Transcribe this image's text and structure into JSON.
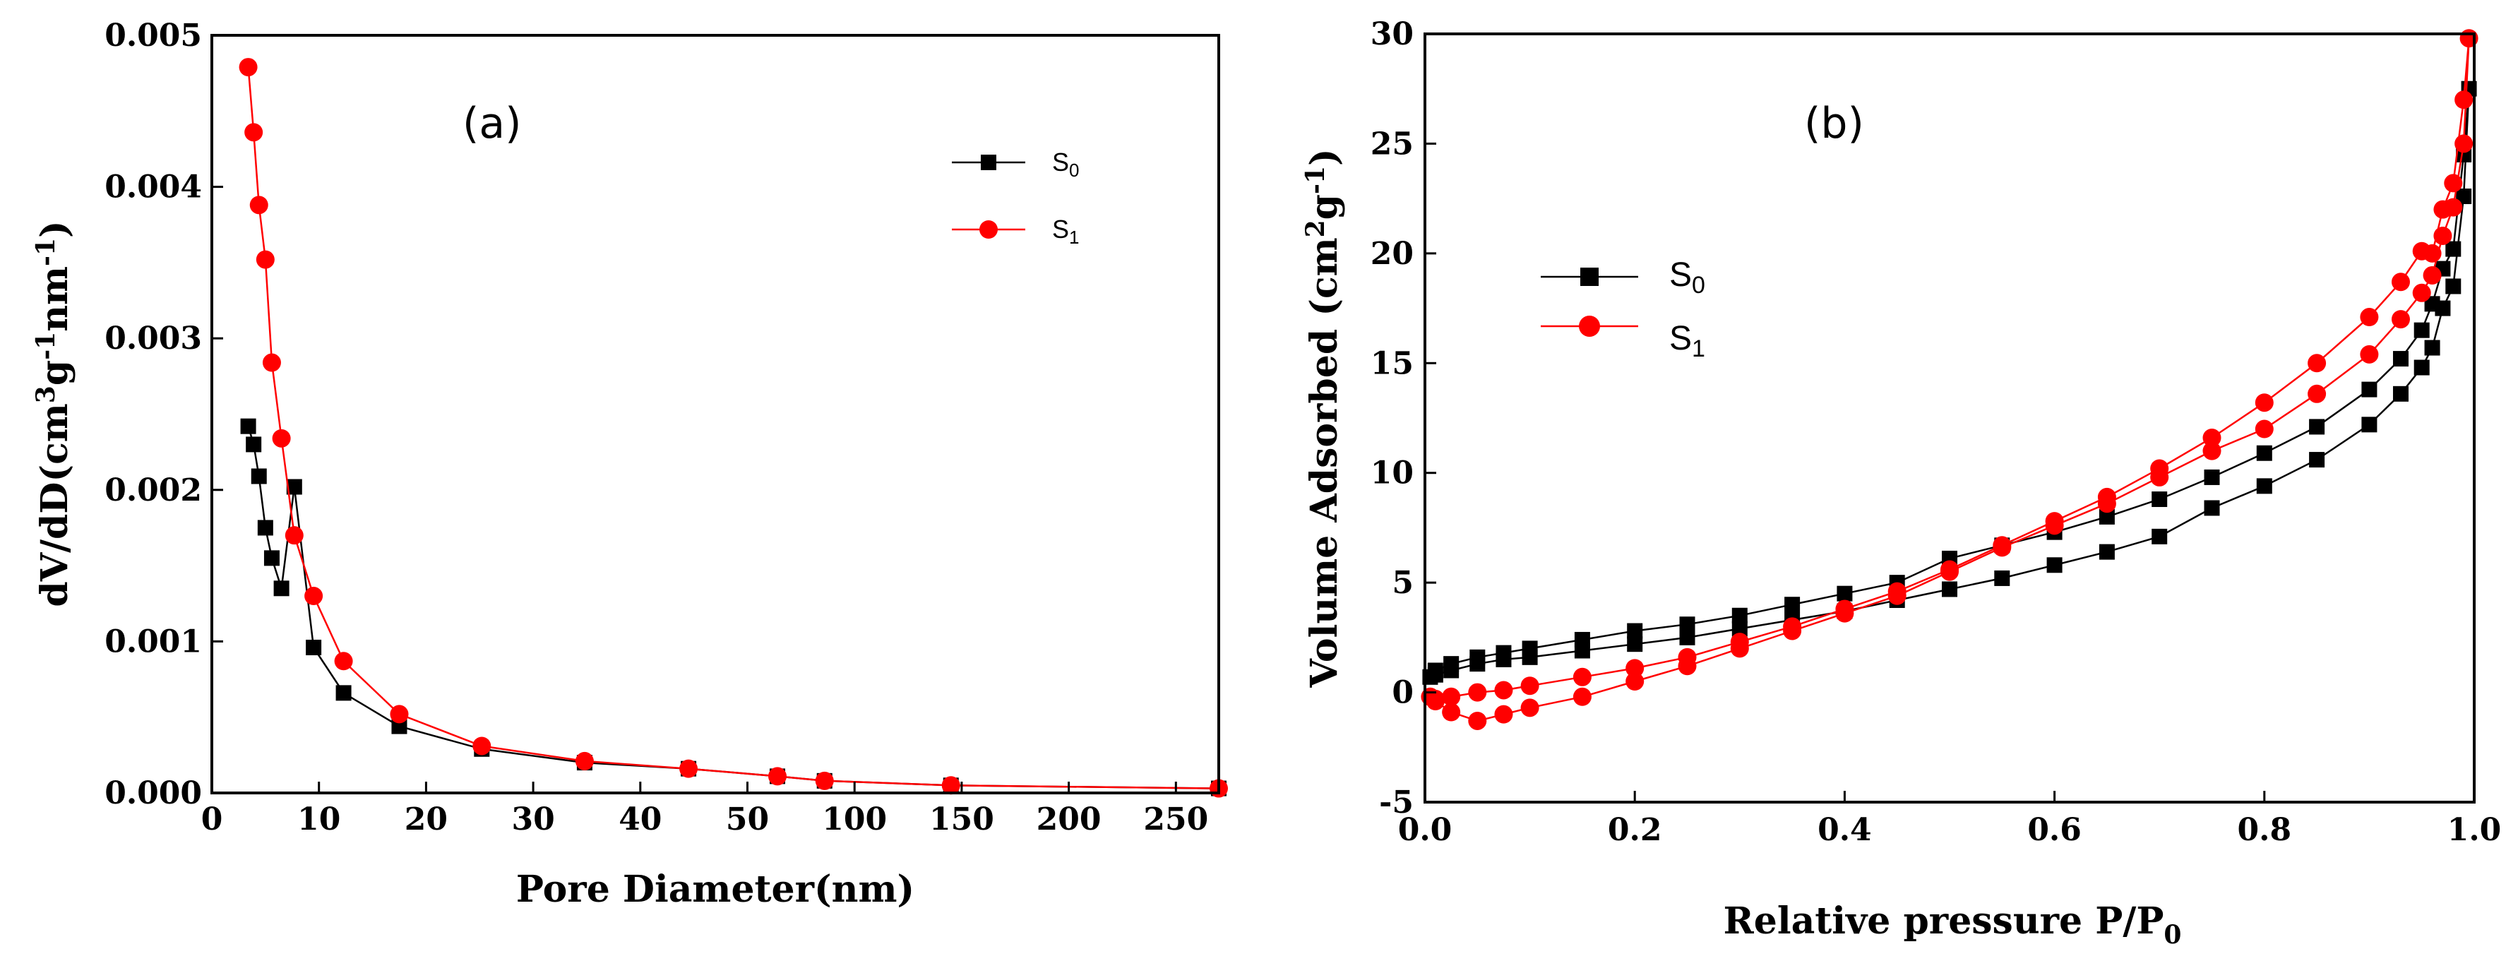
{
  "colors": {
    "s0": "#000000",
    "s1": "#ff0000",
    "frame": "#000000"
  },
  "chart_data": [
    {
      "type": "line",
      "panel_label": "(a)",
      "title": "",
      "xlabel": "Pore Diameter(nm)",
      "ylabel": "dV/dD(cm3g-1nm-1)",
      "ylabel_parts": {
        "base": "dV/dD(cm",
        "sup1": "3",
        "mid1": "g",
        "sup2": "-1",
        "mid2": "nm",
        "sup3": "-1",
        "end": ")"
      },
      "x_scale": "piecewise-categorical",
      "xticks": [
        0,
        10,
        20,
        30,
        40,
        50,
        100,
        150,
        200,
        250
      ],
      "xtick_labels": [
        "0",
        "10",
        "20",
        "30",
        "40",
        "50",
        "100",
        "150",
        "200",
        "250"
      ],
      "xlim": [
        0,
        270
      ],
      "ylim": [
        0,
        0.005
      ],
      "yticks": [
        0,
        0.001,
        0.002,
        0.003,
        0.004,
        0.005
      ],
      "ytick_labels": [
        "0.000",
        "0.001",
        "0.002",
        "0.003",
        "0.004",
        "0.005"
      ],
      "grid": false,
      "legend_position": "top-right",
      "series": [
        {
          "name": "S0",
          "label_base": "S",
          "label_sub": "0",
          "marker": "square",
          "color": "#000000",
          "x": [
            3.4,
            3.9,
            4.4,
            5.0,
            5.6,
            6.5,
            7.7,
            9.5,
            12.3,
            17.5,
            25.2,
            34.8,
            44.5,
            64.0,
            86.0,
            145.0,
            270.0
          ],
          "y": [
            0.00242,
            0.0023,
            0.00209,
            0.00175,
            0.00155,
            0.00135,
            0.00202,
            0.00096,
            0.00066,
            0.00044,
            0.00029,
            0.0002,
            0.00016,
            0.00011,
            8e-05,
            5e-05,
            3e-05
          ]
        },
        {
          "name": "S1",
          "label_base": "S",
          "label_sub": "1",
          "marker": "circle",
          "color": "#ff0000",
          "x": [
            3.4,
            3.9,
            4.4,
            5.0,
            5.6,
            6.5,
            7.7,
            9.5,
            12.3,
            17.5,
            25.2,
            34.8,
            44.5,
            64.0,
            86.0,
            145.0,
            270.0
          ],
          "y": [
            0.00479,
            0.00436,
            0.00388,
            0.00352,
            0.00284,
            0.00234,
            0.0017,
            0.0013,
            0.00087,
            0.00052,
            0.00031,
            0.00021,
            0.00016,
            0.00011,
            8e-05,
            5e-05,
            3e-05
          ]
        }
      ]
    },
    {
      "type": "line",
      "panel_label": "(b)",
      "title": "",
      "xlabel": "Relative pressure P/P0",
      "xlabel_parts": {
        "base": "Relative pressure P/P",
        "sub": "0"
      },
      "ylabel": "Volume Adsorbed (cm2g-1)",
      "ylabel_parts": {
        "base": "Volume Adsorbed (cm",
        "sup1": "2",
        "mid": "g",
        "sup2": "-1",
        "end": ")"
      },
      "xlim": [
        0,
        1
      ],
      "ylim": [
        -5,
        30
      ],
      "xticks": [
        0,
        0.2,
        0.4,
        0.6,
        0.8,
        1.0
      ],
      "xtick_labels": [
        "0.0",
        "0.2",
        "0.4",
        "0.6",
        "0.8",
        "1.0"
      ],
      "yticks": [
        -5,
        0,
        5,
        10,
        15,
        20,
        25,
        30
      ],
      "ytick_labels": [
        "-5",
        "0",
        "5",
        "10",
        "15",
        "20",
        "25",
        "30"
      ],
      "grid": false,
      "legend_position": "upper-left",
      "series": [
        {
          "name": "S0",
          "label_base": "S",
          "label_sub": "0",
          "marker": "square",
          "color": "#000000",
          "x": [
            0.005,
            0.01,
            0.025,
            0.05,
            0.075,
            0.1,
            0.15,
            0.2,
            0.25,
            0.3,
            0.35,
            0.4,
            0.45,
            0.5,
            0.55,
            0.6,
            0.65,
            0.7,
            0.75,
            0.8,
            0.85,
            0.9,
            0.93,
            0.95,
            0.96,
            0.97,
            0.98,
            0.99,
            0.995,
            0.99,
            0.98,
            0.97,
            0.96,
            0.95,
            0.93,
            0.9,
            0.85,
            0.8,
            0.75,
            0.7,
            0.65,
            0.6,
            0.55,
            0.5,
            0.45,
            0.4,
            0.35,
            0.3,
            0.25,
            0.2,
            0.15,
            0.1,
            0.075,
            0.05,
            0.025,
            0.01
          ],
          "y": [
            0.7,
            0.8,
            1.0,
            1.3,
            1.5,
            1.6,
            1.9,
            2.2,
            2.5,
            2.9,
            3.3,
            3.7,
            4.2,
            4.7,
            5.2,
            5.8,
            6.4,
            7.1,
            8.4,
            9.4,
            10.6,
            12.2,
            13.6,
            14.8,
            15.7,
            17.5,
            18.5,
            22.6,
            27.5,
            24.5,
            20.2,
            19.3,
            17.7,
            16.5,
            15.2,
            13.8,
            12.1,
            10.9,
            9.8,
            8.8,
            8.0,
            7.3,
            6.7,
            6.1,
            5.0,
            4.5,
            4.0,
            3.5,
            3.1,
            2.8,
            2.4,
            2.0,
            1.8,
            1.6,
            1.3,
            1.0
          ]
        },
        {
          "name": "S1",
          "label_base": "S",
          "label_sub": "1",
          "marker": "circle",
          "color": "#ff0000",
          "x": [
            0.005,
            0.01,
            0.025,
            0.05,
            0.075,
            0.1,
            0.15,
            0.2,
            0.25,
            0.3,
            0.35,
            0.4,
            0.45,
            0.5,
            0.55,
            0.6,
            0.65,
            0.7,
            0.75,
            0.8,
            0.85,
            0.9,
            0.93,
            0.95,
            0.96,
            0.97,
            0.98,
            0.99,
            0.995,
            0.99,
            0.98,
            0.97,
            0.96,
            0.95,
            0.93,
            0.9,
            0.85,
            0.8,
            0.75,
            0.7,
            0.65,
            0.6,
            0.55,
            0.5,
            0.45,
            0.4,
            0.35,
            0.3,
            0.25,
            0.2,
            0.15,
            0.1,
            0.075,
            0.05,
            0.025,
            0.01
          ],
          "y": [
            -0.2,
            -0.4,
            -0.9,
            -1.3,
            -1.0,
            -0.7,
            -0.2,
            0.5,
            1.2,
            2.0,
            2.8,
            3.6,
            4.4,
            5.5,
            6.6,
            7.6,
            8.6,
            9.8,
            11.0,
            12.0,
            13.6,
            15.4,
            17.0,
            18.2,
            19.0,
            20.8,
            22.1,
            25.0,
            29.8,
            27.0,
            23.2,
            22.0,
            20.0,
            20.1,
            18.7,
            17.1,
            15.0,
            13.2,
            11.6,
            10.2,
            8.9,
            7.8,
            6.7,
            5.6,
            4.6,
            3.8,
            3.0,
            2.3,
            1.6,
            1.1,
            0.7,
            0.3,
            0.1,
            0.0,
            -0.2,
            -0.3
          ]
        }
      ]
    }
  ]
}
